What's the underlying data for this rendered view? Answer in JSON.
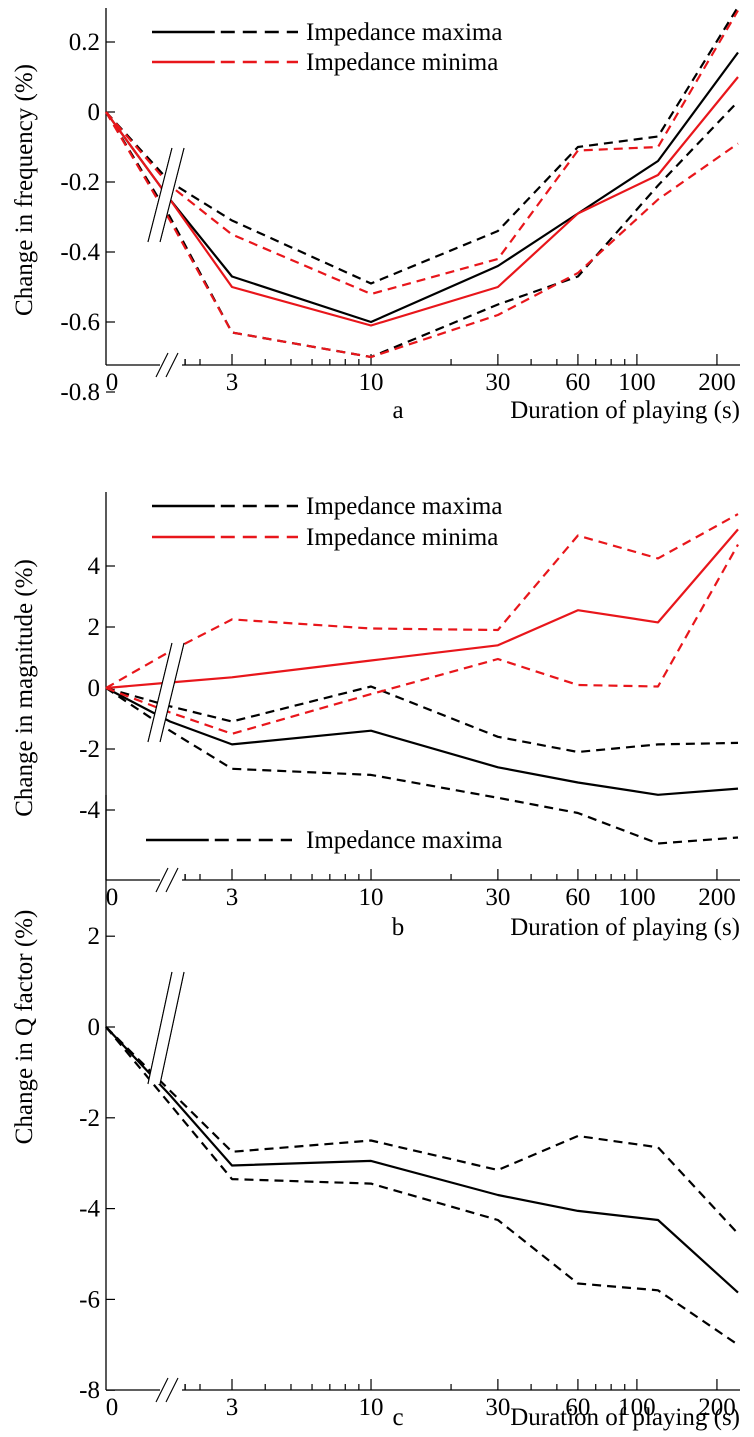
{
  "chart_data": [
    {
      "type": "line",
      "panel_letter": "a",
      "xlabel": "Duration of playing (s)",
      "ylabel": "Change in frequency (%)",
      "x_scale": "broken-log",
      "x_ticks": [
        "0",
        "3",
        "10",
        "30",
        "60",
        "100",
        "200"
      ],
      "y_ticks": [
        "-0.8",
        "-0.6",
        "-0.4",
        "-0.2",
        "0",
        "0.2"
      ],
      "ylim": [
        -0.8,
        0.3
      ],
      "x": [
        0,
        1.5,
        3,
        10,
        30,
        60,
        120,
        240
      ],
      "legend": [
        {
          "label": "Impedance maxima",
          "color": "#000000"
        },
        {
          "label": "Impedance minima",
          "color": "#e8161b"
        }
      ],
      "series": [
        {
          "name": "Impedance maxima",
          "color": "#000000",
          "style": "solid",
          "values": [
            0,
            -0.25,
            -0.47,
            -0.6,
            -0.44,
            -0.29,
            -0.14,
            0.17
          ]
        },
        {
          "color": "#000000",
          "style": "dashed",
          "values": [
            0,
            -0.2,
            -0.31,
            -0.49,
            -0.34,
            -0.1,
            -0.07,
            0.3
          ]
        },
        {
          "color": "#000000",
          "style": "dashed",
          "values": [
            0,
            -0.3,
            -0.63,
            -0.7,
            -0.55,
            -0.47,
            -0.21,
            0.03
          ]
        },
        {
          "name": "Impedance minima",
          "color": "#e8161b",
          "style": "solid",
          "values": [
            0,
            -0.25,
            -0.5,
            -0.61,
            -0.5,
            -0.29,
            -0.18,
            0.1
          ]
        },
        {
          "color": "#e8161b",
          "style": "dashed",
          "values": [
            0,
            -0.21,
            -0.35,
            -0.52,
            -0.42,
            -0.11,
            -0.1,
            0.29
          ]
        },
        {
          "color": "#e8161b",
          "style": "dashed",
          "values": [
            0,
            -0.31,
            -0.63,
            -0.7,
            -0.58,
            -0.46,
            -0.25,
            -0.09
          ]
        }
      ]
    },
    {
      "type": "line",
      "panel_letter": "b",
      "xlabel": "Duration of playing (s)",
      "ylabel": "Change in magnitude (%)",
      "x_scale": "broken-log",
      "x_ticks": [
        "0",
        "3",
        "10",
        "30",
        "60",
        "100",
        "200"
      ],
      "y_ticks": [
        "-4",
        "-2",
        "0",
        "2",
        "4"
      ],
      "ylim": [
        -6,
        6
      ],
      "x": [
        0,
        1.5,
        3,
        10,
        30,
        60,
        120,
        240
      ],
      "legend": [
        {
          "label": "Impedance maxima",
          "color": "#000000"
        },
        {
          "label": "Impedance minima",
          "color": "#e8161b"
        }
      ],
      "series": [
        {
          "name": "Impedance maxima",
          "color": "#000000",
          "style": "solid",
          "values": [
            0,
            -1.1,
            -1.85,
            -1.4,
            -2.6,
            -3.1,
            -3.5,
            -3.3
          ]
        },
        {
          "color": "#000000",
          "style": "dashed",
          "values": [
            0,
            -0.6,
            -1.1,
            0.05,
            -1.6,
            -2.1,
            -1.85,
            -1.8
          ]
        },
        {
          "color": "#000000",
          "style": "dashed",
          "values": [
            0,
            -1.4,
            -2.65,
            -2.85,
            -3.6,
            -4.1,
            -5.1,
            -4.9
          ]
        },
        {
          "name": "Impedance minima",
          "color": "#e8161b",
          "style": "solid",
          "values": [
            0,
            0.18,
            0.35,
            0.9,
            1.4,
            2.55,
            2.15,
            5.2
          ]
        },
        {
          "color": "#e8161b",
          "style": "dashed",
          "values": [
            0,
            1.2,
            2.25,
            1.95,
            1.9,
            5.0,
            4.25,
            5.7
          ]
        },
        {
          "color": "#e8161b",
          "style": "dashed",
          "values": [
            0,
            -0.8,
            -1.5,
            -0.2,
            0.95,
            0.1,
            0.05,
            4.7
          ]
        }
      ]
    },
    {
      "type": "line",
      "panel_letter": "c",
      "xlabel": "Duration of playing (s)",
      "ylabel": "Change in Q factor (%)",
      "x_scale": "broken-log",
      "x_ticks": [
        "0",
        "3",
        "10",
        "30",
        "60",
        "100",
        "200"
      ],
      "y_ticks": [
        "-8",
        "-6",
        "-4",
        "-2",
        "0",
        "2"
      ],
      "ylim": [
        -8,
        3
      ],
      "x": [
        0,
        1.5,
        3,
        10,
        30,
        60,
        120,
        240
      ],
      "legend": [
        {
          "label": "Impedance maxima",
          "color": "#000000"
        }
      ],
      "series": [
        {
          "name": "Impedance maxima",
          "color": "#000000",
          "style": "solid",
          "values": [
            0,
            -1.5,
            -3.05,
            -2.95,
            -3.7,
            -4.05,
            -4.25,
            -5.85
          ]
        },
        {
          "color": "#000000",
          "style": "dashed",
          "values": [
            0,
            -1.4,
            -2.75,
            -2.5,
            -3.15,
            -2.4,
            -2.65,
            -4.55
          ]
        },
        {
          "color": "#000000",
          "style": "dashed",
          "values": [
            0,
            -1.7,
            -3.35,
            -3.45,
            -4.25,
            -5.65,
            -5.8,
            -7.0
          ]
        }
      ]
    }
  ]
}
